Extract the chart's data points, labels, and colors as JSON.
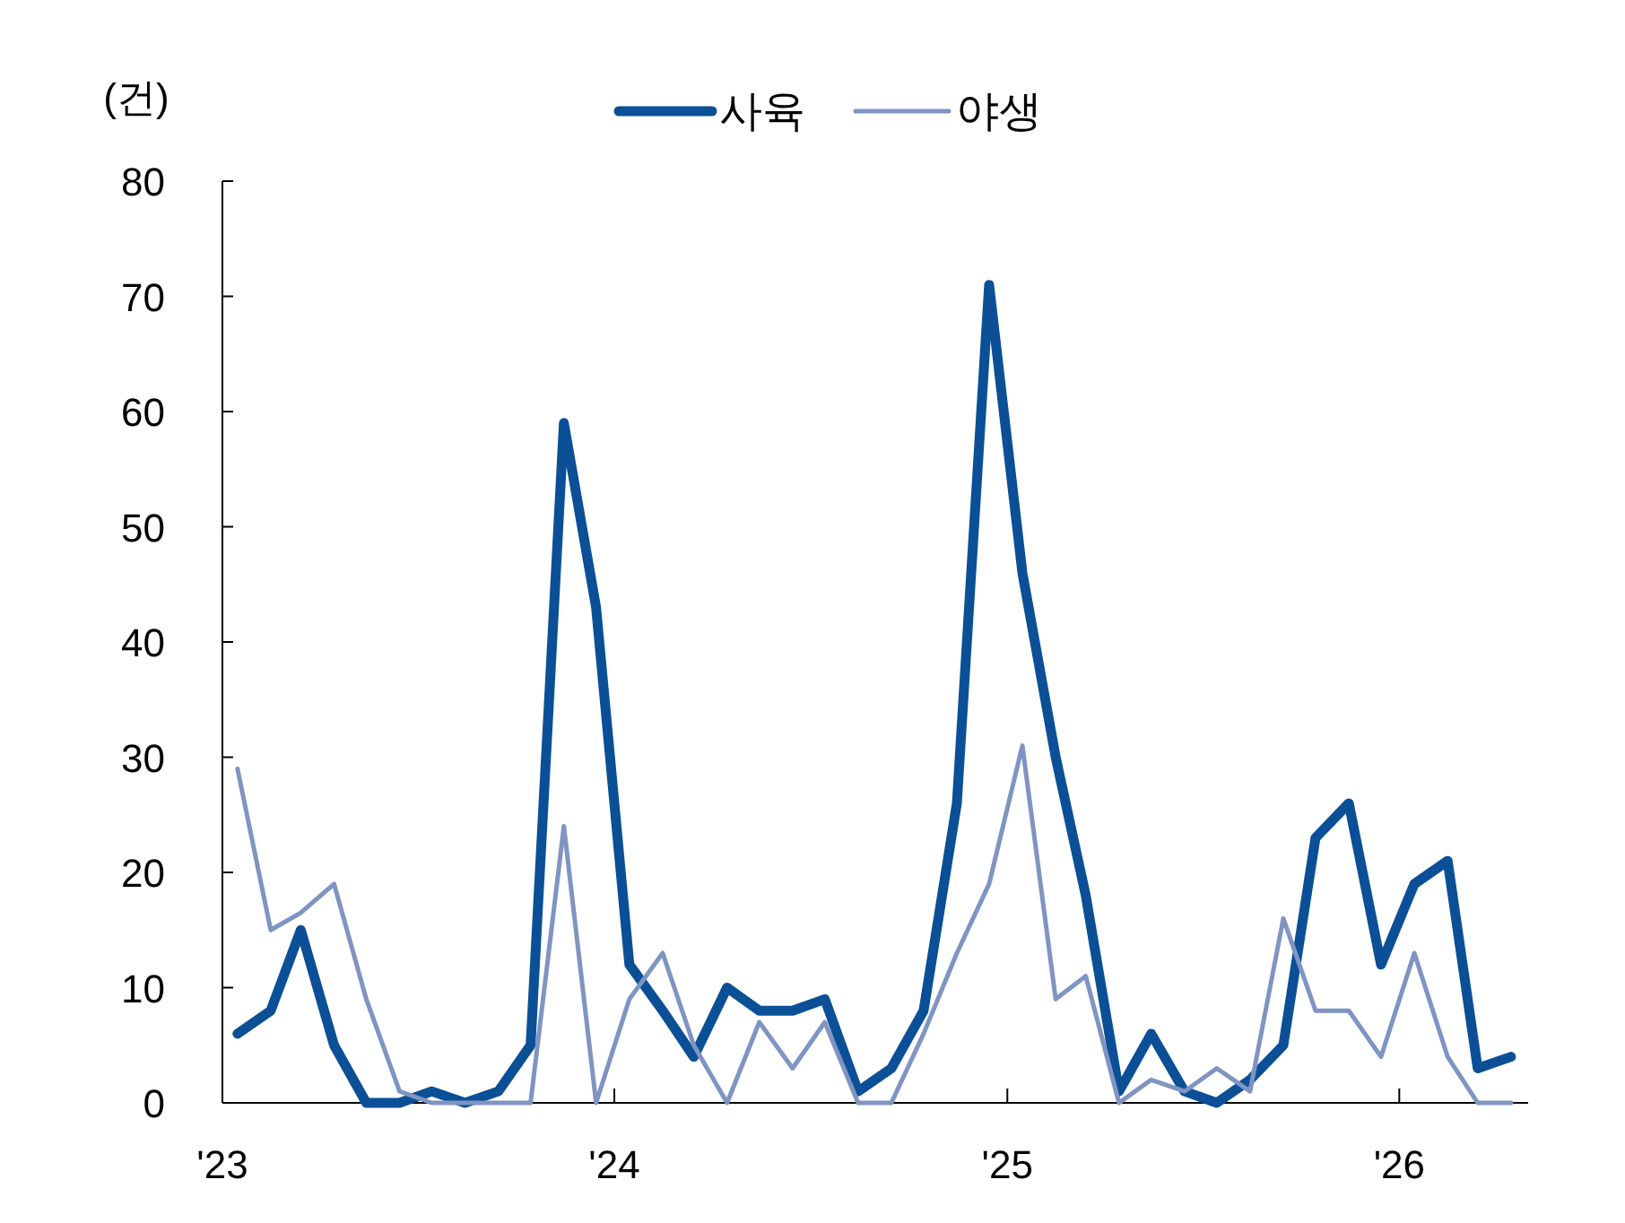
{
  "chart_data": {
    "type": "line",
    "ylabel": "(건)",
    "legend": "top",
    "line_style": "solid",
    "grid": false,
    "x": [
      "2023-01-15",
      "2023-02-15",
      "2023-03-15",
      "2023-04-15",
      "2023-05-15",
      "2023-06-15",
      "2023-07-15",
      "2023-08-15",
      "2023-09-15",
      "2023-10-15",
      "2023-11-15",
      "2023-12-15",
      "2024-01-15",
      "2024-02-15",
      "2024-03-15",
      "2024-04-15",
      "2024-05-15",
      "2024-06-15",
      "2024-07-15",
      "2024-08-15",
      "2024-09-15",
      "2024-10-15",
      "2024-11-15",
      "2024-12-15",
      "2025-01-15",
      "2025-02-15",
      "2025-03-15",
      "2025-04-15",
      "2025-05-15",
      "2025-06-15",
      "2025-07-15",
      "2025-08-15",
      "2025-09-15",
      "2025-10-15",
      "2025-11-15",
      "2025-12-15",
      "2026-01-15",
      "2026-02-15",
      "2026-03-15",
      "2026-04-15"
    ],
    "xlim": [
      "2023-01-01",
      "2026-05-01"
    ],
    "xticks": [
      {
        "value": "2023-01-01",
        "label": "'23"
      },
      {
        "value": "2024-01-01",
        "label": "'24"
      },
      {
        "value": "2025-01-01",
        "label": "'25"
      },
      {
        "value": "2026-01-01",
        "label": "'26"
      }
    ],
    "ylim": [
      0,
      80
    ],
    "yticks": [
      0,
      10,
      20,
      30,
      40,
      50,
      60,
      70,
      80
    ],
    "series": [
      {
        "name": "사육",
        "color": "#0b4f97",
        "values": [
          6,
          8,
          15,
          5,
          0,
          0,
          1,
          0,
          1,
          5,
          59,
          43,
          12,
          8,
          4,
          10,
          8,
          8,
          9,
          1,
          3,
          8,
          26,
          71,
          46,
          30,
          18,
          1,
          6,
          1,
          0,
          2,
          5,
          23,
          26,
          12,
          19,
          21,
          3,
          4
        ]
      },
      {
        "name": "야생",
        "color": "#7f94c2",
        "values": [
          29,
          15,
          16.5,
          19,
          9,
          1,
          0,
          0,
          0,
          0,
          24,
          0,
          9,
          13,
          5,
          0,
          7,
          3,
          7,
          0,
          0,
          6,
          13,
          19,
          31,
          9,
          11,
          0,
          2,
          1,
          3,
          1,
          16,
          8,
          8,
          4,
          13,
          4,
          0,
          0
        ]
      }
    ]
  }
}
